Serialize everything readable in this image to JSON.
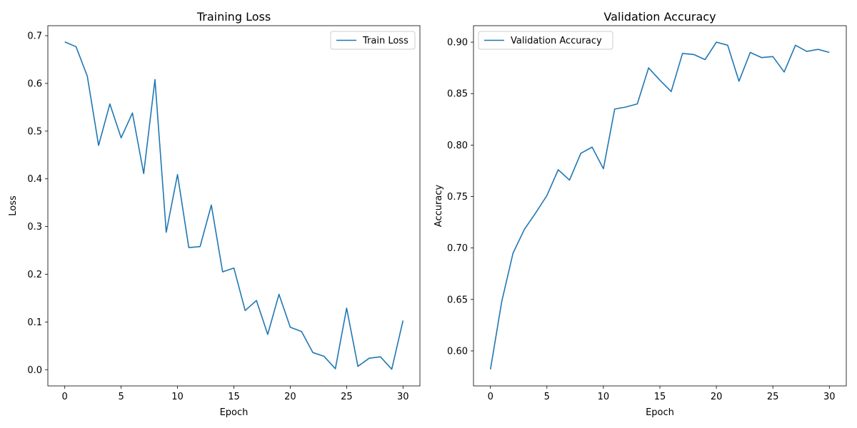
{
  "charts": [
    {
      "title": "Training Loss",
      "xlabel": "Epoch",
      "ylabel": "Loss",
      "legend_label": "Train Loss"
    },
    {
      "title": "Validation Accuracy",
      "xlabel": "Epoch",
      "ylabel": "Accuracy",
      "legend_label": "Validation Accuracy"
    }
  ],
  "chart_data": [
    {
      "type": "line",
      "title": "Training Loss",
      "xlabel": "Epoch",
      "ylabel": "Loss",
      "x": [
        0,
        1,
        2,
        3,
        4,
        5,
        6,
        7,
        8,
        9,
        10,
        11,
        12,
        13,
        14,
        15,
        16,
        17,
        18,
        19,
        20,
        21,
        22,
        23,
        24,
        25,
        26,
        27,
        28,
        29,
        30
      ],
      "series": [
        {
          "name": "Train Loss",
          "color": "#1f77b4",
          "values": [
            0.687,
            0.677,
            0.615,
            0.47,
            0.557,
            0.486,
            0.538,
            0.411,
            0.608,
            0.288,
            0.409,
            0.256,
            0.258,
            0.345,
            0.205,
            0.213,
            0.124,
            0.145,
            0.074,
            0.158,
            0.089,
            0.08,
            0.036,
            0.028,
            0.002,
            0.129,
            0.007,
            0.024,
            0.027,
            0.001,
            0.103
          ]
        }
      ],
      "xlim": [
        -1.5,
        31.5
      ],
      "ylim": [
        -0.034,
        0.721
      ],
      "xticks": [
        0,
        5,
        10,
        15,
        20,
        25,
        30
      ],
      "yticks": [
        0.0,
        0.1,
        0.2,
        0.3,
        0.4,
        0.5,
        0.6,
        0.7
      ],
      "ytick_labels": [
        "0.0",
        "0.1",
        "0.2",
        "0.3",
        "0.4",
        "0.5",
        "0.6",
        "0.7"
      ],
      "legend_position": "upper right",
      "grid": false
    },
    {
      "type": "line",
      "title": "Validation Accuracy",
      "xlabel": "Epoch",
      "ylabel": "Accuracy",
      "x": [
        0,
        1,
        2,
        3,
        4,
        5,
        6,
        7,
        8,
        9,
        10,
        11,
        12,
        13,
        14,
        15,
        16,
        17,
        18,
        19,
        20,
        21,
        22,
        23,
        24,
        25,
        26,
        27,
        28,
        29,
        30
      ],
      "series": [
        {
          "name": "Validation Accuracy",
          "color": "#1f77b4",
          "values": [
            0.582,
            0.648,
            0.695,
            0.718,
            0.734,
            0.751,
            0.776,
            0.766,
            0.792,
            0.798,
            0.777,
            0.835,
            0.837,
            0.84,
            0.875,
            0.863,
            0.852,
            0.889,
            0.888,
            0.883,
            0.9,
            0.897,
            0.862,
            0.89,
            0.885,
            0.886,
            0.871,
            0.897,
            0.891,
            0.893,
            0.89
          ]
        }
      ],
      "xlim": [
        -1.5,
        31.5
      ],
      "ylim": [
        0.566,
        0.916
      ],
      "xticks": [
        0,
        5,
        10,
        15,
        20,
        25,
        30
      ],
      "yticks": [
        0.6,
        0.65,
        0.7,
        0.75,
        0.8,
        0.85,
        0.9
      ],
      "ytick_labels": [
        "0.60",
        "0.65",
        "0.70",
        "0.75",
        "0.80",
        "0.85",
        "0.90"
      ],
      "legend_position": "upper left",
      "grid": false
    }
  ]
}
